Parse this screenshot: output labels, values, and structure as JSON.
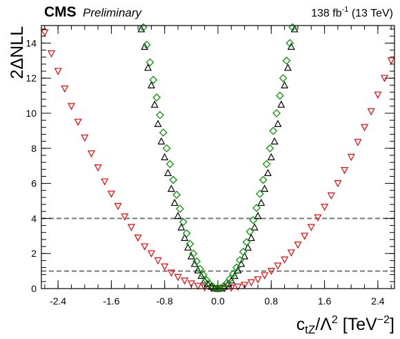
{
  "header": {
    "experiment": "CMS",
    "status": "Preliminary",
    "lumi_value": "138 fb",
    "lumi_exp": "-1",
    "lumi_energy": " (13 TeV)"
  },
  "chart_data": {
    "type": "scatter",
    "xlabel": {
      "base": "c",
      "sub": "tZ",
      "mid": "/Λ",
      "sup": "2",
      "unit_open": " [TeV",
      "unit_exp": "−2",
      "unit_close": "]"
    },
    "ylabel": "2ΔNLL",
    "xlim": [
      -2.65,
      2.65
    ],
    "ylim": [
      0,
      15
    ],
    "x_ticks": [
      -2.4,
      -1.6,
      -0.8,
      0.0,
      0.8,
      1.6,
      2.4
    ],
    "x_tick_labels": [
      "-2.4",
      "-1.6",
      "-0.8",
      "0.0",
      "0.8",
      "1.6",
      "2.4"
    ],
    "y_ticks": [
      0,
      2,
      4,
      6,
      8,
      10,
      12,
      14
    ],
    "y_tick_labels": [
      "0",
      "2",
      "4",
      "6",
      "8",
      "10",
      "12",
      "14"
    ],
    "reference_lines": [
      {
        "y": 1,
        "style": "dashed"
      },
      {
        "y": 4,
        "style": "dashed"
      }
    ],
    "legend": "none",
    "series": [
      {
        "marker": "triangle-down",
        "color": "#ff0000",
        "points": [
          [
            -2.6,
            14.6
          ],
          [
            -2.5,
            13.4
          ],
          [
            -2.4,
            12.4
          ],
          [
            -2.3,
            11.4
          ],
          [
            -2.2,
            10.4
          ],
          [
            -2.1,
            9.5
          ],
          [
            -2.0,
            8.6
          ],
          [
            -1.9,
            7.7
          ],
          [
            -1.8,
            6.9
          ],
          [
            -1.7,
            6.1
          ],
          [
            -1.6,
            5.4
          ],
          [
            -1.5,
            4.7
          ],
          [
            -1.4,
            4.1
          ],
          [
            -1.3,
            3.5
          ],
          [
            -1.2,
            2.9
          ],
          [
            -1.1,
            2.4
          ],
          [
            -1.0,
            2.0
          ],
          [
            -0.9,
            1.6
          ],
          [
            -0.8,
            1.25
          ],
          [
            -0.7,
            0.9
          ],
          [
            -0.6,
            0.65
          ],
          [
            -0.5,
            0.45
          ],
          [
            -0.4,
            0.28
          ],
          [
            -0.3,
            0.15
          ],
          [
            -0.2,
            0.06
          ],
          [
            -0.1,
            0.02
          ],
          [
            0.0,
            0.0
          ],
          [
            0.1,
            0.01
          ],
          [
            0.2,
            0.04
          ],
          [
            0.3,
            0.1
          ],
          [
            0.4,
            0.2
          ],
          [
            0.5,
            0.35
          ],
          [
            0.6,
            0.52
          ],
          [
            0.7,
            0.75
          ],
          [
            0.8,
            1.0
          ],
          [
            0.9,
            1.3
          ],
          [
            1.0,
            1.65
          ],
          [
            1.1,
            2.05
          ],
          [
            1.2,
            2.5
          ],
          [
            1.3,
            3.0
          ],
          [
            1.4,
            3.5
          ],
          [
            1.5,
            4.05
          ],
          [
            1.6,
            4.65
          ],
          [
            1.7,
            5.3
          ],
          [
            1.8,
            6.0
          ],
          [
            1.9,
            6.75
          ],
          [
            2.0,
            7.5
          ],
          [
            2.1,
            8.35
          ],
          [
            2.2,
            9.2
          ],
          [
            2.3,
            10.1
          ],
          [
            2.4,
            11.05
          ],
          [
            2.5,
            12.0
          ],
          [
            2.6,
            13.0
          ]
        ]
      },
      {
        "marker": "triangle-up",
        "color": "#000000",
        "points": [
          [
            -1.15,
            14.8
          ],
          [
            -1.1,
            13.8
          ],
          [
            -1.05,
            12.6
          ],
          [
            -1.0,
            11.6
          ],
          [
            -0.95,
            10.5
          ],
          [
            -0.9,
            9.4
          ],
          [
            -0.85,
            8.4
          ],
          [
            -0.8,
            7.5
          ],
          [
            -0.75,
            6.6
          ],
          [
            -0.7,
            5.7
          ],
          [
            -0.65,
            4.9
          ],
          [
            -0.6,
            4.15
          ],
          [
            -0.55,
            3.5
          ],
          [
            -0.5,
            2.9
          ],
          [
            -0.45,
            2.35
          ],
          [
            -0.4,
            1.85
          ],
          [
            -0.35,
            1.42
          ],
          [
            -0.3,
            1.05
          ],
          [
            -0.25,
            0.73
          ],
          [
            -0.2,
            0.47
          ],
          [
            -0.15,
            0.27
          ],
          [
            -0.1,
            0.12
          ],
          [
            -0.05,
            0.03
          ],
          [
            0.0,
            0.0
          ],
          [
            0.05,
            0.03
          ],
          [
            0.1,
            0.12
          ],
          [
            0.15,
            0.27
          ],
          [
            0.2,
            0.47
          ],
          [
            0.25,
            0.73
          ],
          [
            0.3,
            1.05
          ],
          [
            0.35,
            1.42
          ],
          [
            0.4,
            1.85
          ],
          [
            0.45,
            2.35
          ],
          [
            0.5,
            2.9
          ],
          [
            0.55,
            3.5
          ],
          [
            0.6,
            4.15
          ],
          [
            0.65,
            4.9
          ],
          [
            0.7,
            5.7
          ],
          [
            0.75,
            6.6
          ],
          [
            0.8,
            7.5
          ],
          [
            0.85,
            8.4
          ],
          [
            0.9,
            9.4
          ],
          [
            0.95,
            10.5
          ],
          [
            1.0,
            11.6
          ],
          [
            1.05,
            12.6
          ],
          [
            1.1,
            13.8
          ],
          [
            1.15,
            14.8
          ]
        ]
      },
      {
        "marker": "diamond",
        "color": "#009900",
        "points": [
          [
            -1.12,
            14.9
          ],
          [
            -1.07,
            13.9
          ],
          [
            -1.02,
            12.9
          ],
          [
            -0.97,
            11.9
          ],
          [
            -0.92,
            10.9
          ],
          [
            -0.87,
            9.9
          ],
          [
            -0.82,
            8.9
          ],
          [
            -0.77,
            8.0
          ],
          [
            -0.72,
            7.1
          ],
          [
            -0.67,
            6.2
          ],
          [
            -0.62,
            5.35
          ],
          [
            -0.57,
            4.55
          ],
          [
            -0.52,
            3.8
          ],
          [
            -0.47,
            3.15
          ],
          [
            -0.42,
            2.55
          ],
          [
            -0.37,
            2.0
          ],
          [
            -0.32,
            1.55
          ],
          [
            -0.27,
            1.12
          ],
          [
            -0.22,
            0.78
          ],
          [
            -0.17,
            0.48
          ],
          [
            -0.12,
            0.25
          ],
          [
            -0.07,
            0.09
          ],
          [
            -0.02,
            0.01
          ],
          [
            0.03,
            0.02
          ],
          [
            0.08,
            0.12
          ],
          [
            0.13,
            0.3
          ],
          [
            0.18,
            0.55
          ],
          [
            0.23,
            0.85
          ],
          [
            0.28,
            1.2
          ],
          [
            0.33,
            1.62
          ],
          [
            0.38,
            2.1
          ],
          [
            0.43,
            2.65
          ],
          [
            0.48,
            3.25
          ],
          [
            0.53,
            3.9
          ],
          [
            0.58,
            4.6
          ],
          [
            0.63,
            5.4
          ],
          [
            0.68,
            6.2
          ],
          [
            0.73,
            7.1
          ],
          [
            0.78,
            8.0
          ],
          [
            0.83,
            9.0
          ],
          [
            0.88,
            10.0
          ],
          [
            0.93,
            11.0
          ],
          [
            0.98,
            12.0
          ],
          [
            1.03,
            13.0
          ],
          [
            1.08,
            14.0
          ],
          [
            1.12,
            14.9
          ]
        ]
      }
    ]
  }
}
